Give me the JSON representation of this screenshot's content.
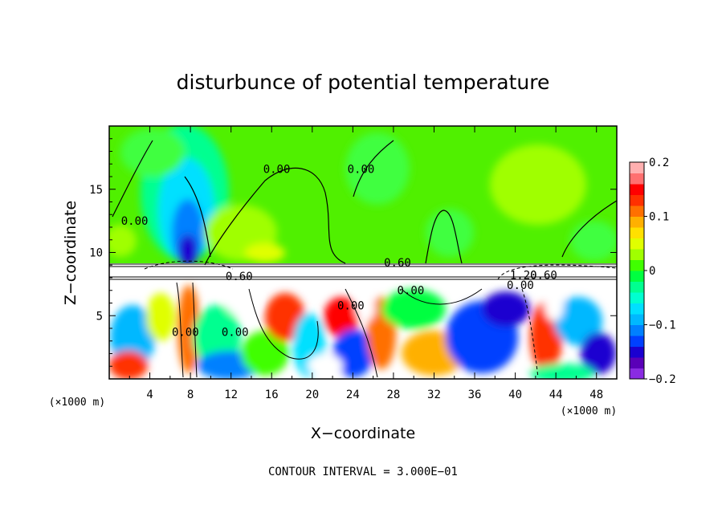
{
  "chart_data": {
    "type": "heatmap",
    "title": "disturbunce of potential temperature",
    "xlabel": "X−coordinate",
    "ylabel": "Z−coordinate",
    "x_unit": "(×1000 m)",
    "y_unit": "(×1000 m)",
    "xlim": [
      0,
      50
    ],
    "ylim": [
      0,
      20
    ],
    "x_ticks": [
      4,
      8,
      12,
      16,
      20,
      24,
      28,
      32,
      36,
      40,
      44,
      48
    ],
    "y_ticks": [
      5,
      10,
      15
    ],
    "colorbar": {
      "range": [
        -0.2,
        0.2
      ],
      "ticks": [
        "0.2",
        "0.1",
        "0",
        "−0.1",
        "−0.2"
      ],
      "tick_values": [
        0.2,
        0.1,
        0,
        -0.1,
        -0.2
      ],
      "colors": [
        "#8a2be2",
        "#5a00b8",
        "#1a00d0",
        "#0040ff",
        "#0080ff",
        "#00b8ff",
        "#00e0ff",
        "#00ffd0",
        "#00ff90",
        "#00ff40",
        "#40ff00",
        "#a0ff00",
        "#e0ff00",
        "#ffe000",
        "#ffb000",
        "#ff7000",
        "#ff3000",
        "#ff0000",
        "#ff7070",
        "#ffb0b0"
      ]
    },
    "contour_labels": [
      {
        "text": "0.00",
        "x": 2.5,
        "z": 12.2
      },
      {
        "text": "0.00",
        "x": 16.5,
        "z": 16.3
      },
      {
        "text": "0.00",
        "x": 24.8,
        "z": 16.3
      },
      {
        "text": "0.60",
        "x": 28.4,
        "z": 8.9
      },
      {
        "text": "0.60",
        "x": 12.8,
        "z": 7.8
      },
      {
        "text": "0.00",
        "x": 29.7,
        "z": 6.7
      },
      {
        "text": "0.00",
        "x": 23.8,
        "z": 5.5
      },
      {
        "text": "0.00",
        "x": 7.5,
        "z": 3.4
      },
      {
        "text": "0.00",
        "x": 12.4,
        "z": 3.4
      },
      {
        "text": "1.20",
        "x": 40.8,
        "z": 7.9
      },
      {
        "text": "0.60",
        "x": 42.8,
        "z": 7.9
      },
      {
        "text": "0.00",
        "x": 40.5,
        "z": 7.1
      }
    ],
    "contour_interval_text": "CONTOUR INTERVAL = 3.000E−01"
  }
}
